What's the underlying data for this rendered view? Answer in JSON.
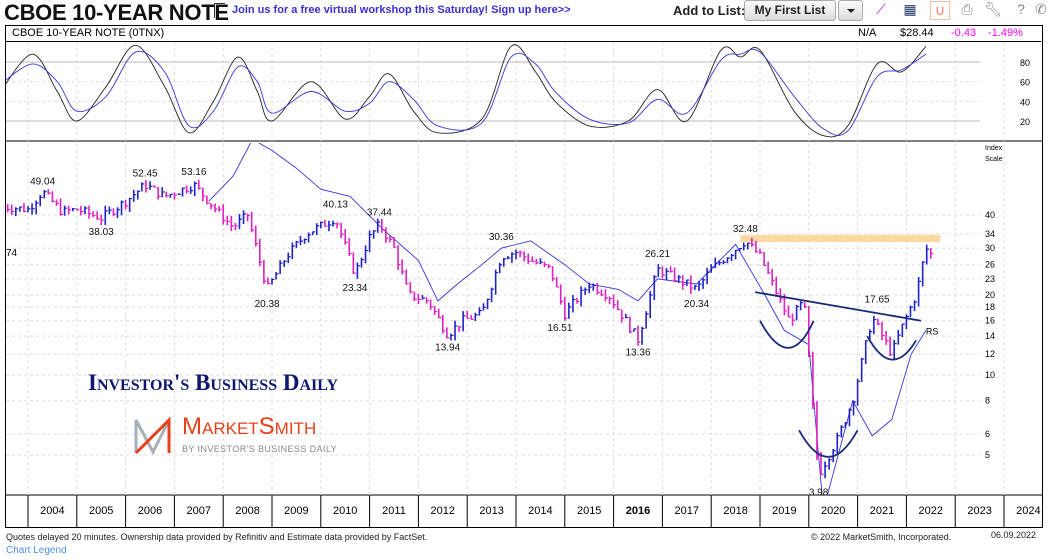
{
  "header": {
    "title": "CBOE 10-YEAR NOTE",
    "promo": "Join us for a free virtual workshop this Saturday! Sign up here>>",
    "add_to_list_label": "Add to List:",
    "list_selected": "My First List",
    "icons": [
      "flag-icon",
      "line-chart-icon",
      "layout-grid-icon",
      "curve-icon",
      "print-icon",
      "wrench-icon",
      "help-icon",
      "phone-icon"
    ]
  },
  "quote": {
    "name": "CBOE 10-YEAR NOTE   (0TNX)",
    "status": "N/A",
    "price": "$28.44",
    "change": "-0.43",
    "change_pct": "-1.49%"
  },
  "colors": {
    "up": "#1e22c8",
    "down": "#e020c0",
    "rs": "#3a36d8",
    "osc_fast": "#222222",
    "osc_slow": "#3a36d8",
    "resistance": "#fbd9a0",
    "trendline": "#1a2a7a",
    "accent_link": "#3a2fd0",
    "negative": "#ff00ff"
  },
  "chart_data": [
    {
      "type": "line",
      "panel": "oscillator",
      "ylim": [
        0,
        100
      ],
      "yticks": [
        20,
        40,
        60,
        80
      ],
      "x": [
        2003.5,
        2004.1,
        2004.6,
        2005.0,
        2005.6,
        2006.2,
        2006.8,
        2007.3,
        2007.8,
        2008.3,
        2008.7,
        2009.0,
        2009.8,
        2010.5,
        2011.0,
        2011.4,
        2011.9,
        2012.4,
        2013.3,
        2013.9,
        2014.4,
        2014.8,
        2015.5,
        2016.3,
        2016.9,
        2017.5,
        2018.2,
        2018.6,
        2019.0,
        2019.7,
        2020.3,
        2020.8,
        2021.4,
        2021.9,
        2022.4
      ],
      "series": [
        {
          "values": [
            55,
            88,
            50,
            20,
            55,
            97,
            55,
            8,
            40,
            85,
            50,
            20,
            60,
            22,
            45,
            68,
            30,
            8,
            22,
            96,
            70,
            40,
            15,
            20,
            52,
            20,
            92,
            85,
            92,
            30,
            5,
            15,
            78,
            70,
            96
          ]
        },
        {
          "values": [
            60,
            78,
            60,
            30,
            45,
            90,
            70,
            15,
            30,
            75,
            60,
            28,
            50,
            30,
            38,
            60,
            42,
            15,
            18,
            85,
            78,
            50,
            22,
            18,
            42,
            28,
            82,
            88,
            90,
            45,
            12,
            10,
            65,
            72,
            88
          ]
        }
      ]
    },
    {
      "type": "bar",
      "panel": "price",
      "scale": "log",
      "ylabel": "Index Scale",
      "yticks": [
        5,
        6,
        8,
        10,
        12,
        14,
        16,
        18,
        20,
        23,
        26,
        30,
        34,
        40
      ],
      "xticks": [
        "2004",
        "2005",
        "2006",
        "2007",
        "2008",
        "2009",
        "2010",
        "2011",
        "2012",
        "2013",
        "2014",
        "2015",
        "2016",
        "2017",
        "2018",
        "2019",
        "2020",
        "2021",
        "2022",
        "2023",
        "2024"
      ],
      "x": [
        2003.5,
        2004.0,
        2004.3,
        2004.7,
        2005.0,
        2005.5,
        2006.0,
        2006.4,
        2006.8,
        2007.4,
        2007.9,
        2008.2,
        2008.5,
        2008.9,
        2009.3,
        2009.7,
        2010.3,
        2010.7,
        2011.0,
        2011.2,
        2011.5,
        2011.8,
        2012.2,
        2012.6,
        2012.9,
        2013.3,
        2013.7,
        2014.0,
        2014.3,
        2014.7,
        2015.0,
        2015.5,
        2015.9,
        2016.5,
        2016.9,
        2017.3,
        2017.7,
        2018.0,
        2018.7,
        2019.0,
        2019.6,
        2019.9,
        2020.2,
        2020.6,
        2020.9,
        2021.3,
        2021.7,
        2021.9,
        2022.2,
        2022.4,
        2022.5
      ],
      "values": [
        43,
        42,
        49,
        41,
        42,
        39,
        45,
        52,
        47,
        52,
        41,
        36,
        40,
        21,
        28,
        34,
        39,
        24,
        33,
        37,
        30,
        20,
        19,
        14.2,
        16,
        17,
        28,
        29,
        27,
        25,
        17,
        22,
        20,
        13.6,
        25,
        23,
        21,
        25,
        32,
        28,
        16,
        19,
        4.2,
        5.8,
        8,
        16.5,
        12,
        15,
        20,
        30,
        28.44
      ],
      "labels": [
        {
          "x": 2004.3,
          "value": 49.04,
          "text": "49.04"
        },
        {
          "x": 2005.5,
          "value": 38.03,
          "text": "38.03"
        },
        {
          "x": 2006.4,
          "value": 52.45,
          "text": "52.45"
        },
        {
          "x": 2007.4,
          "value": 53.16,
          "text": "53.16"
        },
        {
          "x": 2008.9,
          "value": 20.38,
          "text": "20.38"
        },
        {
          "x": 2010.3,
          "value": 40.13,
          "text": "40.13"
        },
        {
          "x": 2010.7,
          "value": 23.34,
          "text": "23.34"
        },
        {
          "x": 2011.2,
          "value": 37.44,
          "text": "37.44"
        },
        {
          "x": 2012.6,
          "value": 13.94,
          "text": "13.94"
        },
        {
          "x": 2013.7,
          "value": 30.36,
          "text": "30.36"
        },
        {
          "x": 2014.9,
          "value": 16.51,
          "text": "16.51"
        },
        {
          "x": 2016.5,
          "value": 13.36,
          "text": "13.36"
        },
        {
          "x": 2016.9,
          "value": 26.21,
          "text": "26.21"
        },
        {
          "x": 2017.7,
          "value": 20.34,
          "text": "20.34"
        },
        {
          "x": 2018.7,
          "value": 32.48,
          "text": "32.48"
        },
        {
          "x": 2020.2,
          "value": 3.98,
          "text": "3.98"
        },
        {
          "x": 2021.4,
          "value": 17.65,
          "text": "17.65"
        }
      ],
      "edge_label": "74",
      "rs_line": {
        "x": [
          2007.7,
          2008.2,
          2008.6,
          2009.0,
          2009.5,
          2010.0,
          2010.6,
          2011.3,
          2012.0,
          2012.4,
          2012.8,
          2013.3,
          2013.7,
          2014.3,
          2015.0,
          2015.5,
          2016.1,
          2016.5,
          2016.9,
          2017.7,
          2018.5,
          2019.1,
          2019.5,
          2020.0,
          2020.3,
          2020.9,
          2021.3,
          2021.7,
          2022.1,
          2022.4
        ],
        "values": [
          45,
          56,
          77,
          70,
          60,
          50,
          47,
          35,
          27,
          19,
          22,
          26,
          30,
          32,
          26,
          22,
          21,
          19,
          23,
          22,
          31,
          20,
          14.7,
          13,
          3.1,
          8,
          5.9,
          6.8,
          12,
          14.7
        ]
      },
      "annotations": {
        "resistance": 32.48,
        "rs_tag": "RS"
      }
    }
  ],
  "footer": {
    "disclaimer": "Quotes delayed 20 minutes. Ownership data provided by Refinitiv and Estimate data provided by FactSet.",
    "legend_link": "Chart Legend",
    "copyright": "© 2022 MarketSmith, Incorporated.",
    "date": "06.09.2022"
  },
  "logos": {
    "ibd": "Investor's Business Daily",
    "marketsmith": "MarketSmith",
    "marketsmith_by": "BY INVESTOR'S BUSINESS DAILY"
  }
}
